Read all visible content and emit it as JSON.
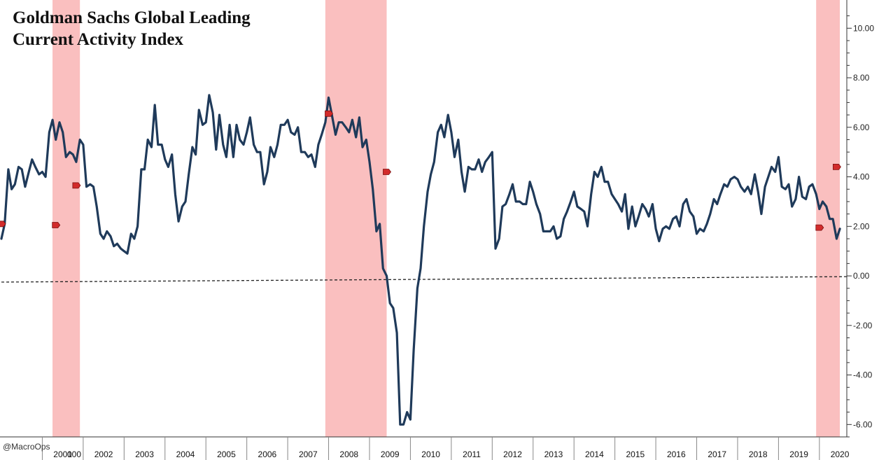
{
  "chart_data": {
    "type": "line",
    "title_lines": [
      "Goldman Sachs Global Leading",
      "Current Activity Index"
    ],
    "xlabel": "",
    "ylabel": "",
    "credit": "@MacroOps",
    "x_tick_labels": [
      "000",
      "2001",
      "2002",
      "2003",
      "2004",
      "2005",
      "2006",
      "2007",
      "2008",
      "2009",
      "2010",
      "2011",
      "2012",
      "2013",
      "2014",
      "2015",
      "2016",
      "2017",
      "2018",
      "2019",
      "2020"
    ],
    "y_tick_labels": [
      "10.00",
      "8.00",
      "6.00",
      "4.00",
      "2.00",
      "0.00",
      "-2.00",
      "-4.00",
      "-6.00"
    ],
    "y_ticks": [
      10,
      8,
      6,
      4,
      2,
      0,
      -2,
      -4,
      -6
    ],
    "ylim": [
      -6.5,
      10.8
    ],
    "xlim": [
      2000.0,
      2020.67
    ],
    "axis_position": "right",
    "grid": false,
    "line_color": "#1f3a5a",
    "recession_color": "#f9b4b4",
    "zero_line_color": "#222222",
    "marker_color": "#d22b2b",
    "shaded_periods": [
      [
        2001.25,
        2001.92
      ],
      [
        2007.92,
        2009.42
      ],
      [
        2019.92,
        2020.5
      ]
    ],
    "zero_line": [
      [
        2000.0,
        -0.25
      ],
      [
        2020.67,
        -0.03
      ]
    ],
    "markers": [
      {
        "x": 2000.0,
        "y": 2.1
      },
      {
        "x": 2001.33,
        "y": 2.05
      },
      {
        "x": 2001.83,
        "y": 3.65
      },
      {
        "x": 2008.0,
        "y": 6.55
      },
      {
        "x": 2009.42,
        "y": 4.2
      },
      {
        "x": 2020.0,
        "y": 1.95
      },
      {
        "x": 2020.42,
        "y": 4.4
      }
    ],
    "series": [
      {
        "values": [
          [
            2000.0,
            1.5
          ],
          [
            2000.08,
            2.1
          ],
          [
            2000.17,
            4.3
          ],
          [
            2000.25,
            3.5
          ],
          [
            2000.33,
            3.7
          ],
          [
            2000.42,
            4.4
          ],
          [
            2000.5,
            4.3
          ],
          [
            2000.58,
            3.6
          ],
          [
            2000.67,
            4.2
          ],
          [
            2000.75,
            4.7
          ],
          [
            2000.83,
            4.4
          ],
          [
            2000.92,
            4.1
          ],
          [
            2001.0,
            4.2
          ],
          [
            2001.08,
            4.0
          ],
          [
            2001.17,
            5.8
          ],
          [
            2001.25,
            6.3
          ],
          [
            2001.33,
            5.5
          ],
          [
            2001.42,
            6.2
          ],
          [
            2001.5,
            5.8
          ],
          [
            2001.58,
            4.8
          ],
          [
            2001.67,
            5.0
          ],
          [
            2001.75,
            4.9
          ],
          [
            2001.83,
            4.6
          ],
          [
            2001.92,
            5.5
          ],
          [
            2002.0,
            5.3
          ],
          [
            2002.08,
            3.6
          ],
          [
            2002.17,
            3.7
          ],
          [
            2002.25,
            3.6
          ],
          [
            2002.33,
            2.8
          ],
          [
            2002.42,
            1.7
          ],
          [
            2002.5,
            1.5
          ],
          [
            2002.58,
            1.8
          ],
          [
            2002.67,
            1.6
          ],
          [
            2002.75,
            1.2
          ],
          [
            2002.83,
            1.3
          ],
          [
            2002.92,
            1.1
          ],
          [
            2003.0,
            1.0
          ],
          [
            2003.08,
            0.9
          ],
          [
            2003.17,
            1.7
          ],
          [
            2003.25,
            1.5
          ],
          [
            2003.33,
            2.0
          ],
          [
            2003.42,
            4.3
          ],
          [
            2003.5,
            4.3
          ],
          [
            2003.58,
            5.5
          ],
          [
            2003.67,
            5.2
          ],
          [
            2003.75,
            6.9
          ],
          [
            2003.83,
            5.3
          ],
          [
            2003.92,
            5.3
          ],
          [
            2004.0,
            4.7
          ],
          [
            2004.08,
            4.4
          ],
          [
            2004.17,
            4.9
          ],
          [
            2004.25,
            3.3
          ],
          [
            2004.33,
            2.2
          ],
          [
            2004.42,
            2.8
          ],
          [
            2004.5,
            3.0
          ],
          [
            2004.58,
            4.1
          ],
          [
            2004.67,
            5.2
          ],
          [
            2004.75,
            4.9
          ],
          [
            2004.83,
            6.7
          ],
          [
            2004.92,
            6.1
          ],
          [
            2005.0,
            6.2
          ],
          [
            2005.08,
            7.3
          ],
          [
            2005.17,
            6.6
          ],
          [
            2005.25,
            5.1
          ],
          [
            2005.33,
            6.5
          ],
          [
            2005.42,
            5.3
          ],
          [
            2005.5,
            4.8
          ],
          [
            2005.58,
            6.1
          ],
          [
            2005.67,
            4.8
          ],
          [
            2005.75,
            6.1
          ],
          [
            2005.83,
            5.5
          ],
          [
            2005.92,
            5.3
          ],
          [
            2006.0,
            5.8
          ],
          [
            2006.08,
            6.4
          ],
          [
            2006.17,
            5.3
          ],
          [
            2006.25,
            5.0
          ],
          [
            2006.33,
            5.0
          ],
          [
            2006.42,
            3.7
          ],
          [
            2006.5,
            4.2
          ],
          [
            2006.58,
            5.2
          ],
          [
            2006.67,
            4.8
          ],
          [
            2006.75,
            5.3
          ],
          [
            2006.83,
            6.1
          ],
          [
            2006.92,
            6.1
          ],
          [
            2007.0,
            6.3
          ],
          [
            2007.08,
            5.8
          ],
          [
            2007.17,
            5.7
          ],
          [
            2007.25,
            6.0
          ],
          [
            2007.33,
            5.0
          ],
          [
            2007.42,
            5.0
          ],
          [
            2007.5,
            4.8
          ],
          [
            2007.58,
            4.9
          ],
          [
            2007.67,
            4.4
          ],
          [
            2007.75,
            5.3
          ],
          [
            2007.83,
            5.7
          ],
          [
            2007.92,
            6.2
          ],
          [
            2008.0,
            7.2
          ],
          [
            2008.08,
            6.5
          ],
          [
            2008.17,
            5.7
          ],
          [
            2008.25,
            6.2
          ],
          [
            2008.33,
            6.2
          ],
          [
            2008.42,
            6.0
          ],
          [
            2008.5,
            5.8
          ],
          [
            2008.58,
            6.3
          ],
          [
            2008.67,
            5.6
          ],
          [
            2008.75,
            6.4
          ],
          [
            2008.83,
            5.2
          ],
          [
            2008.92,
            5.5
          ],
          [
            2009.0,
            4.6
          ],
          [
            2009.08,
            3.5
          ],
          [
            2009.17,
            1.8
          ],
          [
            2009.25,
            2.1
          ],
          [
            2009.33,
            0.3
          ],
          [
            2009.42,
            0.0
          ],
          [
            2009.5,
            -1.1
          ],
          [
            2009.58,
            -1.3
          ],
          [
            2009.67,
            -2.3
          ],
          [
            2009.75,
            -6.0
          ],
          [
            2009.83,
            -6.0
          ],
          [
            2009.92,
            -5.5
          ],
          [
            2010.0,
            -5.8
          ],
          [
            2010.08,
            -3.0
          ],
          [
            2010.17,
            -0.5
          ],
          [
            2010.25,
            0.3
          ],
          [
            2010.33,
            2.0
          ],
          [
            2010.42,
            3.4
          ],
          [
            2010.5,
            4.1
          ],
          [
            2010.58,
            4.6
          ],
          [
            2010.67,
            5.8
          ],
          [
            2010.75,
            6.1
          ],
          [
            2010.83,
            5.6
          ],
          [
            2010.92,
            6.5
          ],
          [
            2011.0,
            5.8
          ],
          [
            2011.08,
            4.8
          ],
          [
            2011.17,
            5.5
          ],
          [
            2011.25,
            4.2
          ],
          [
            2011.33,
            3.4
          ],
          [
            2011.42,
            4.4
          ],
          [
            2011.5,
            4.3
          ],
          [
            2011.58,
            4.3
          ],
          [
            2011.67,
            4.7
          ],
          [
            2011.75,
            4.2
          ],
          [
            2011.83,
            4.6
          ],
          [
            2011.92,
            4.8
          ],
          [
            2012.0,
            5.0
          ],
          [
            2012.08,
            1.1
          ],
          [
            2012.17,
            1.5
          ],
          [
            2012.25,
            2.8
          ],
          [
            2012.33,
            2.9
          ],
          [
            2012.42,
            3.3
          ],
          [
            2012.5,
            3.7
          ],
          [
            2012.58,
            3.0
          ],
          [
            2012.67,
            3.0
          ],
          [
            2012.75,
            2.9
          ],
          [
            2012.83,
            2.9
          ],
          [
            2012.92,
            3.8
          ],
          [
            2013.0,
            3.4
          ],
          [
            2013.08,
            2.9
          ],
          [
            2013.17,
            2.5
          ],
          [
            2013.25,
            1.8
          ],
          [
            2013.33,
            1.8
          ],
          [
            2013.42,
            1.8
          ],
          [
            2013.5,
            2.0
          ],
          [
            2013.58,
            1.5
          ],
          [
            2013.67,
            1.6
          ],
          [
            2013.75,
            2.3
          ],
          [
            2013.83,
            2.6
          ],
          [
            2013.92,
            3.0
          ],
          [
            2014.0,
            3.4
          ],
          [
            2014.08,
            2.8
          ],
          [
            2014.17,
            2.7
          ],
          [
            2014.25,
            2.6
          ],
          [
            2014.33,
            2.0
          ],
          [
            2014.42,
            3.3
          ],
          [
            2014.5,
            4.2
          ],
          [
            2014.58,
            4.0
          ],
          [
            2014.67,
            4.4
          ],
          [
            2014.75,
            3.8
          ],
          [
            2014.83,
            3.8
          ],
          [
            2014.92,
            3.3
          ],
          [
            2015.0,
            3.1
          ],
          [
            2015.08,
            2.9
          ],
          [
            2015.17,
            2.6
          ],
          [
            2015.25,
            3.3
          ],
          [
            2015.33,
            1.9
          ],
          [
            2015.42,
            2.8
          ],
          [
            2015.5,
            2.0
          ],
          [
            2015.58,
            2.4
          ],
          [
            2015.67,
            2.9
          ],
          [
            2015.75,
            2.7
          ],
          [
            2015.83,
            2.4
          ],
          [
            2015.92,
            2.9
          ],
          [
            2016.0,
            1.9
          ],
          [
            2016.08,
            1.4
          ],
          [
            2016.17,
            1.9
          ],
          [
            2016.25,
            2.0
          ],
          [
            2016.33,
            1.9
          ],
          [
            2016.42,
            2.3
          ],
          [
            2016.5,
            2.4
          ],
          [
            2016.58,
            2.0
          ],
          [
            2016.67,
            2.9
          ],
          [
            2016.75,
            3.1
          ],
          [
            2016.83,
            2.6
          ],
          [
            2016.92,
            2.4
          ],
          [
            2017.0,
            1.7
          ],
          [
            2017.08,
            1.9
          ],
          [
            2017.17,
            1.8
          ],
          [
            2017.25,
            2.1
          ],
          [
            2017.33,
            2.5
          ],
          [
            2017.42,
            3.1
          ],
          [
            2017.5,
            2.9
          ],
          [
            2017.58,
            3.3
          ],
          [
            2017.67,
            3.7
          ],
          [
            2017.75,
            3.6
          ],
          [
            2017.83,
            3.9
          ],
          [
            2017.92,
            4.0
          ],
          [
            2018.0,
            3.9
          ],
          [
            2018.08,
            3.6
          ],
          [
            2018.17,
            3.4
          ],
          [
            2018.25,
            3.6
          ],
          [
            2018.33,
            3.3
          ],
          [
            2018.42,
            4.1
          ],
          [
            2018.5,
            3.4
          ],
          [
            2018.58,
            2.5
          ],
          [
            2018.67,
            3.6
          ],
          [
            2018.75,
            4.0
          ],
          [
            2018.83,
            4.4
          ],
          [
            2018.92,
            4.2
          ],
          [
            2019.0,
            4.8
          ],
          [
            2019.08,
            3.6
          ],
          [
            2019.17,
            3.5
          ],
          [
            2019.25,
            3.7
          ],
          [
            2019.33,
            2.8
          ],
          [
            2019.42,
            3.1
          ],
          [
            2019.5,
            4.0
          ],
          [
            2019.58,
            3.2
          ],
          [
            2019.67,
            3.1
          ],
          [
            2019.75,
            3.6
          ],
          [
            2019.83,
            3.7
          ],
          [
            2019.92,
            3.3
          ],
          [
            2020.0,
            2.7
          ],
          [
            2020.08,
            3.0
          ],
          [
            2020.17,
            2.8
          ],
          [
            2020.25,
            2.3
          ],
          [
            2020.33,
            2.3
          ],
          [
            2020.42,
            1.5
          ],
          [
            2020.5,
            1.9
          ]
        ]
      }
    ]
  }
}
